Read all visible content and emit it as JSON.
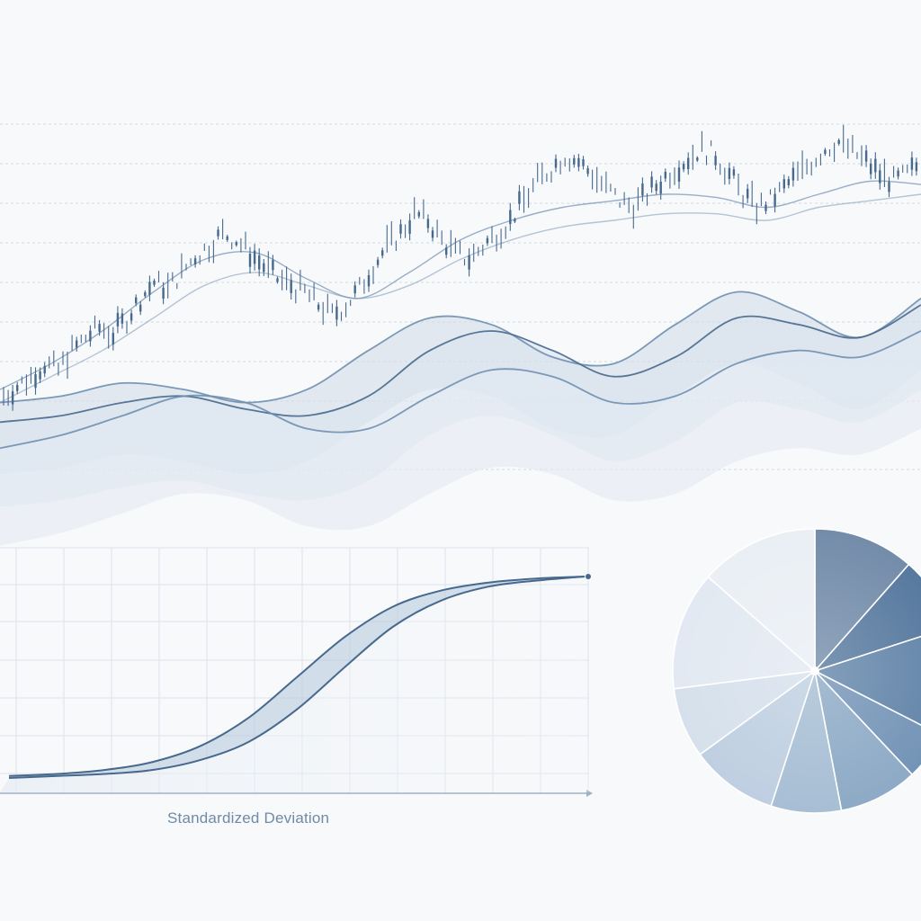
{
  "colors": {
    "background": "#f8f9fb",
    "grid": "#c9d3de",
    "line_dark": "#47698d",
    "line_mid": "#6f8fb0",
    "band": "#cbd8e6",
    "pie": [
      "#6d87a6",
      "#4f739a",
      "#5b7fa5",
      "#6d8fb3",
      "#88a6c3",
      "#a3bbd2",
      "#bccde0",
      "#d4dfeb",
      "#e1e8f1",
      "#e9eef4"
    ]
  },
  "chart_data": [
    {
      "type": "line",
      "title": "",
      "xlabel": "",
      "ylabel": "",
      "grid": true,
      "axis_labels_shown": false,
      "description_of_marks": "candlestick-like price series with moving averages and smooth shaded bands beneath",
      "price_series": [
        12,
        15,
        18,
        22,
        20,
        26,
        30,
        33,
        31,
        36,
        42,
        47,
        45,
        50,
        55,
        58,
        62,
        60,
        56,
        52,
        48,
        46,
        44,
        40,
        37,
        40,
        45,
        52,
        58,
        62,
        68,
        66,
        60,
        56,
        54,
        58,
        62,
        66,
        72,
        78,
        82,
        86,
        84,
        80,
        76,
        72,
        70,
        74,
        78,
        82,
        85,
        88,
        86,
        80,
        74,
        70,
        72,
        76,
        80,
        84,
        88,
        90,
        87,
        84,
        80,
        78,
        80,
        84
      ],
      "moving_average_fast": [
        14,
        22,
        32,
        44,
        54,
        56,
        48,
        42,
        50,
        60,
        66,
        70,
        72,
        74,
        73,
        70,
        74,
        78,
        77
      ],
      "moving_average_slow": [
        10,
        18,
        26,
        36,
        46,
        50,
        46,
        42,
        46,
        54,
        60,
        64,
        66,
        68,
        68,
        66,
        70,
        72,
        74
      ],
      "band_curves": [
        [
          10,
          12,
          16,
          14,
          10,
          14,
          26,
          36,
          34,
          24,
          22,
          34,
          44,
          38,
          30,
          42
        ],
        [
          4,
          6,
          10,
          12,
          8,
          6,
          12,
          26,
          32,
          26,
          18,
          24,
          36,
          34,
          30,
          40
        ],
        [
          -4,
          0,
          6,
          12,
          10,
          2,
          2,
          12,
          20,
          18,
          10,
          12,
          22,
          26,
          24,
          32
        ]
      ]
    },
    {
      "type": "area",
      "title": "",
      "xlabel": "Standardized Deviation",
      "ylabel": "",
      "grid": true,
      "description_of_marks": "two S-shaped cumulative curves with shaded band between them",
      "x": [
        -3,
        -2.5,
        -2,
        -1.5,
        -1,
        -0.5,
        0,
        0.5,
        1,
        1.5,
        2,
        2.5,
        3
      ],
      "series": [
        {
          "values": [
            0.01,
            0.02,
            0.04,
            0.08,
            0.16,
            0.3,
            0.5,
            0.7,
            0.85,
            0.93,
            0.97,
            0.99,
            1.0
          ]
        },
        {
          "values": [
            0.0,
            0.01,
            0.02,
            0.04,
            0.09,
            0.18,
            0.34,
            0.55,
            0.75,
            0.88,
            0.95,
            0.98,
            1.0
          ]
        }
      ],
      "ylim": [
        0,
        1
      ]
    },
    {
      "type": "pie",
      "title": "",
      "description_of_marks": "ten slices with blue-grey shades, no labels",
      "values": [
        11.5,
        8.5,
        12.5,
        5.5,
        9.0,
        8.0,
        10.0,
        8.0,
        13.5,
        13.5
      ]
    }
  ]
}
